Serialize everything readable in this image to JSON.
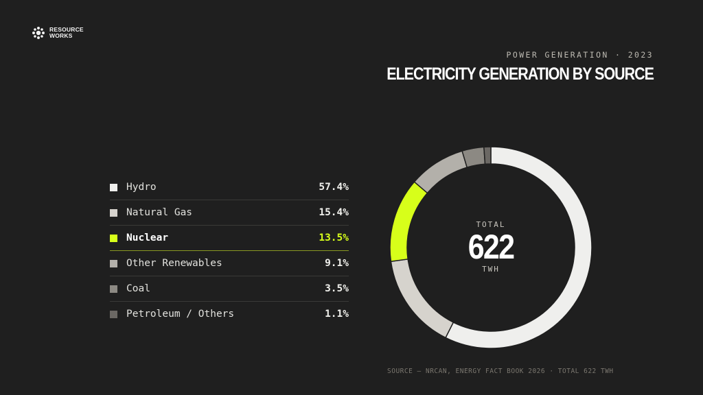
{
  "brand": {
    "line1": "RESOURCE",
    "line2": "WORKS"
  },
  "header": {
    "eyebrow": "POWER GENERATION · 2023",
    "title": "ELECTRICITY GENERATION BY SOURCE"
  },
  "center": {
    "label": "TOTAL",
    "value": "622",
    "unit": "TWH"
  },
  "source": "SOURCE — NRCAN, ENERGY FACT BOOK 2026 · TOTAL 622 TWH",
  "colors": {
    "background": "#1f1f1f",
    "accent": "#d7ff1a"
  },
  "chart_data": {
    "type": "pie",
    "title": "ELECTRICITY GENERATION BY SOURCE",
    "total": 622,
    "total_unit": "TWH",
    "highlight": "Nuclear",
    "categories": [
      "Hydro",
      "Natural Gas",
      "Nuclear",
      "Other Renewables",
      "Coal",
      "Petroleum / Others"
    ],
    "values": [
      57.4,
      15.4,
      13.5,
      9.1,
      3.5,
      1.1
    ],
    "value_labels": [
      "57.4%",
      "15.4%",
      "13.5%",
      "9.1%",
      "3.5%",
      "1.1%"
    ],
    "colors": [
      "#efefed",
      "#d6d3cd",
      "#d7ff1a",
      "#b3b0aa",
      "#8c8983",
      "#6b6864"
    ],
    "legend_placement": "left"
  }
}
